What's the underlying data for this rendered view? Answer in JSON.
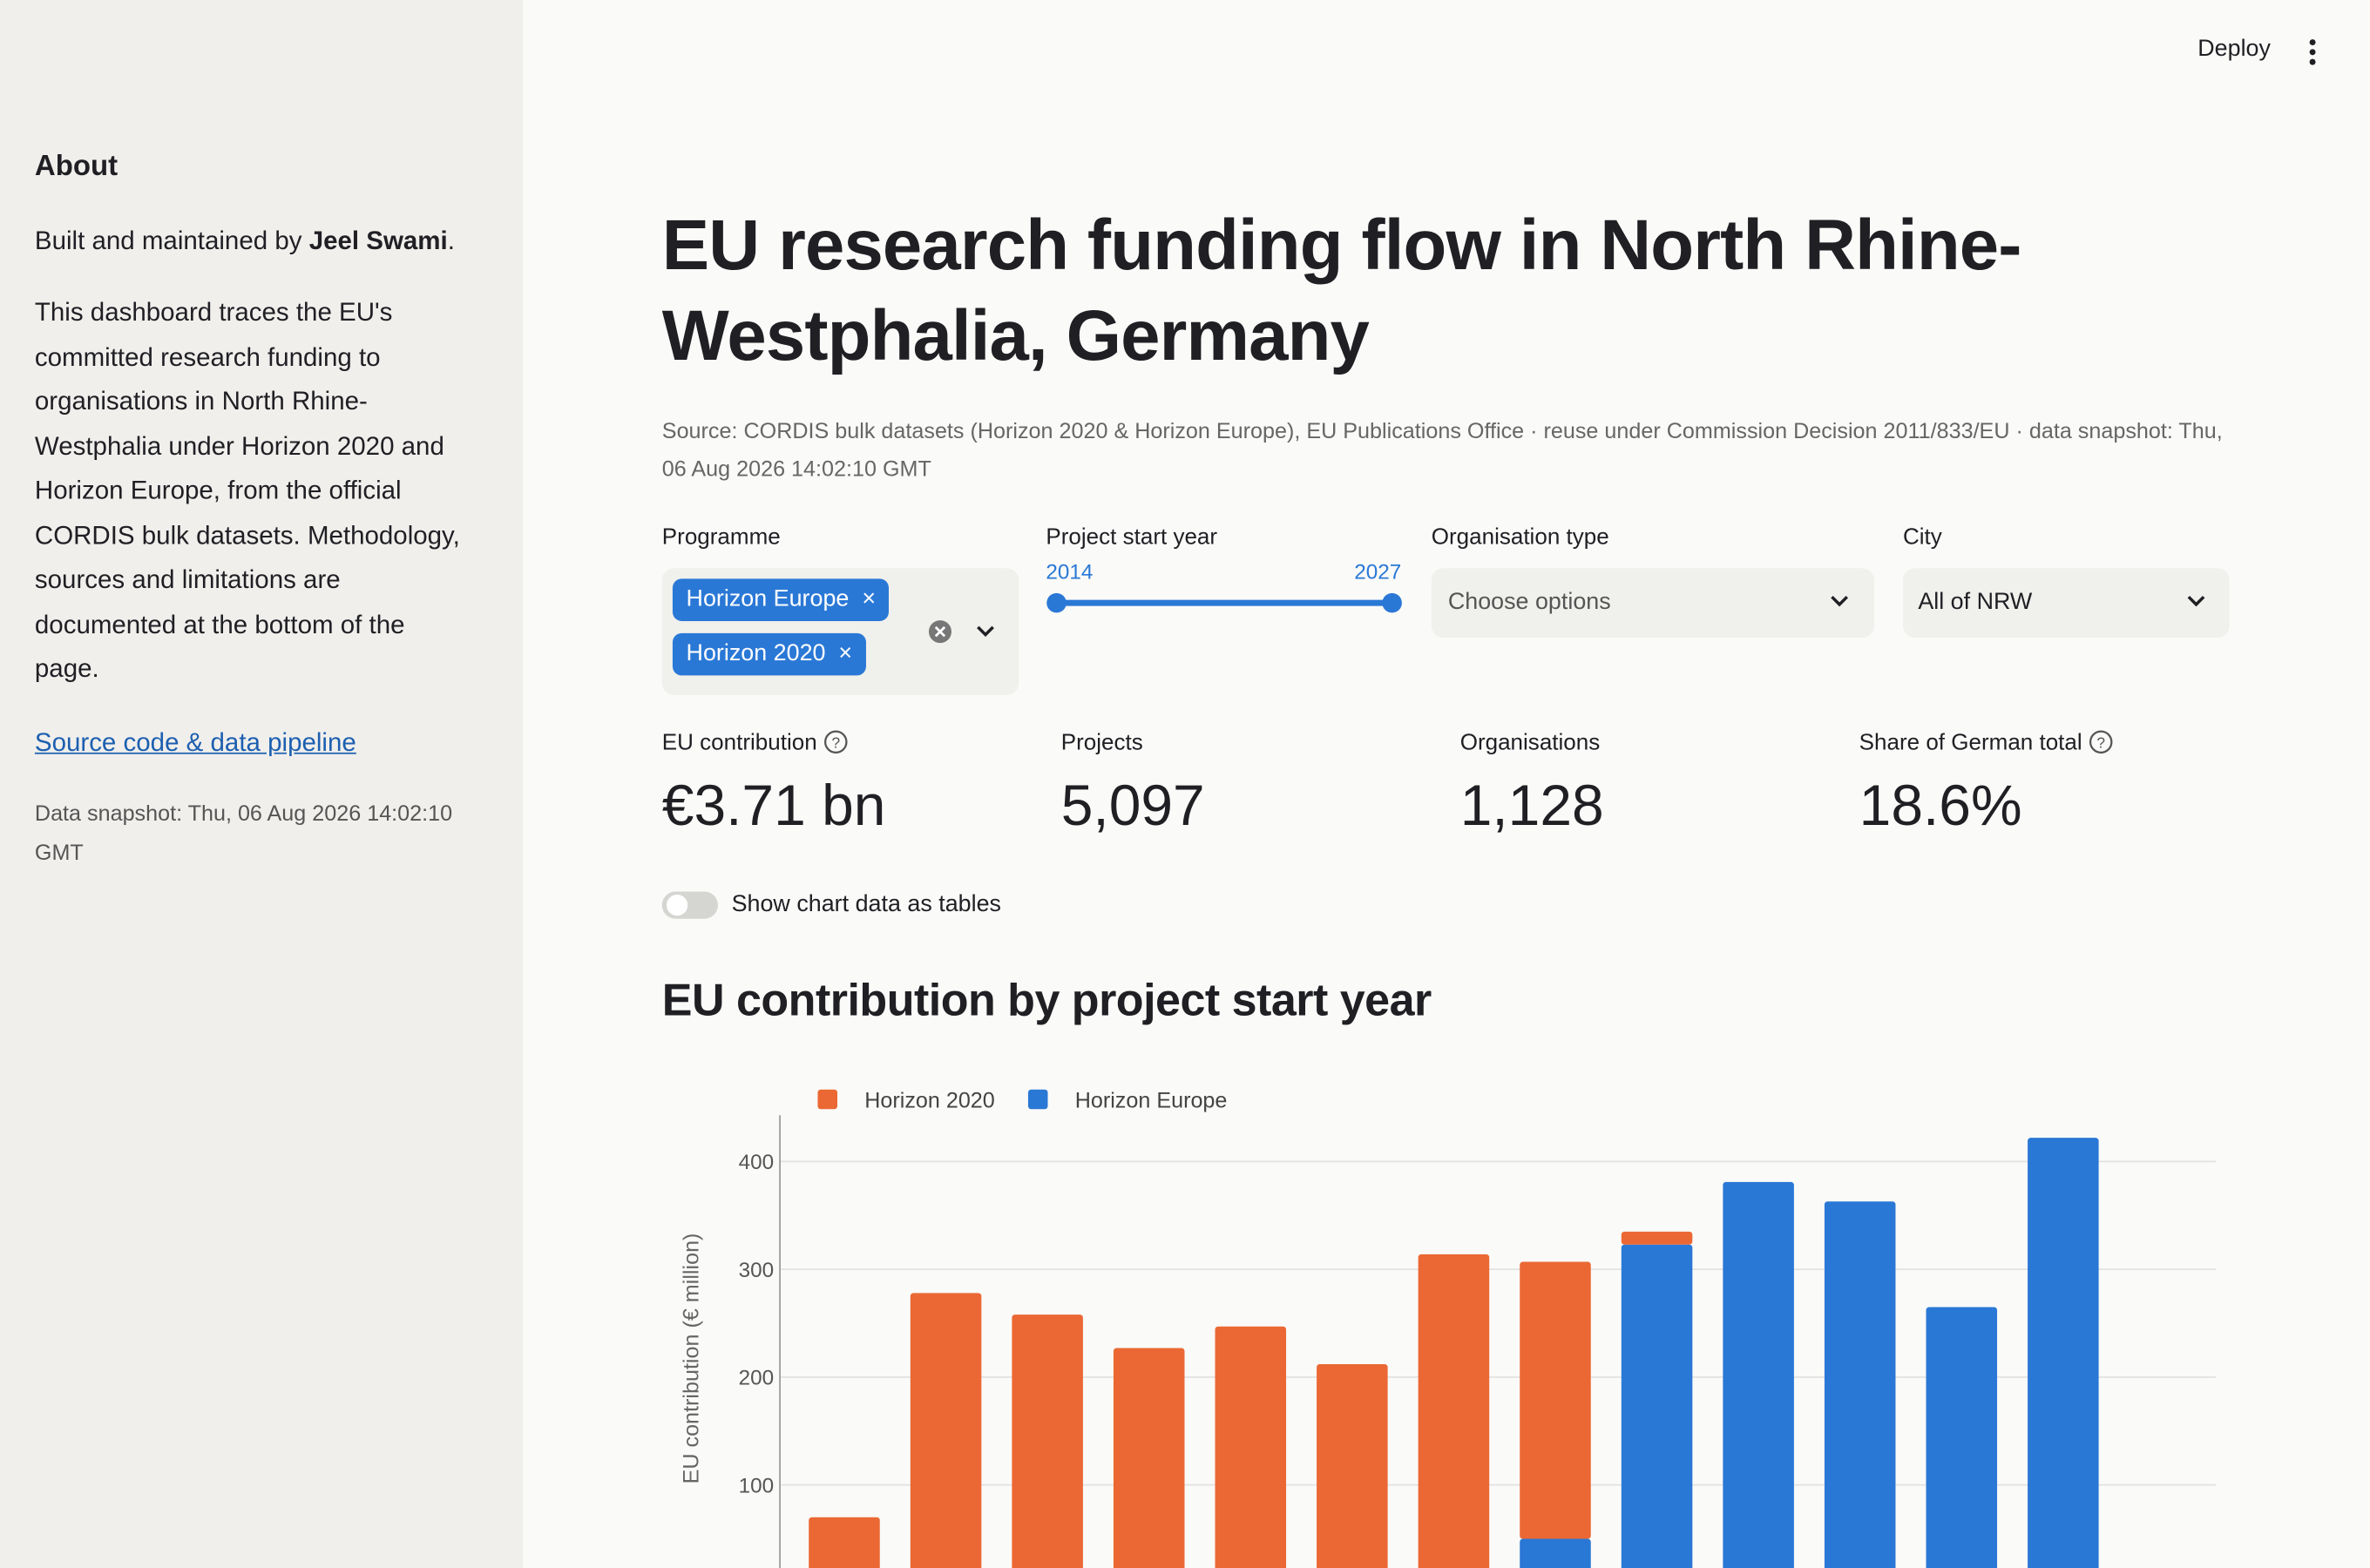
{
  "header": {
    "deploy": "Deploy"
  },
  "sidebar": {
    "heading": "About",
    "built_prefix": "Built and maintained by",
    "author": "Jeel Swami",
    "built_suffix": ".",
    "description": "This dashboard traces the EU's committed research funding to organisations in North Rhine-Westphalia under Horizon 2020 and Horizon Europe, from the official CORDIS bulk datasets. Methodology, sources and limitations are documented at the bottom of the page.",
    "link": "Source code & data pipeline",
    "snapshot": "Data snapshot: Thu, 06 Aug 2026 14:02:10 GMT"
  },
  "title": "EU research funding flow in North Rhine-Westphalia, Germany",
  "source": "Source: CORDIS bulk datasets (Horizon 2020 & Horizon Europe), EU Publications Office · reuse under Commission Decision 2011/833/EU · data snapshot: Thu, 06 Aug 2026 14:02:10 GMT",
  "filters": {
    "programme": {
      "label": "Programme",
      "selected": [
        "Horizon Europe",
        "Horizon 2020"
      ]
    },
    "year": {
      "label": "Project start year",
      "min": 2014,
      "max": 2027
    },
    "organisation_type": {
      "label": "Organisation type",
      "placeholder": "Choose options"
    },
    "city": {
      "label": "City",
      "value": "All of NRW"
    }
  },
  "metrics": [
    {
      "label": "EU contribution",
      "value": "€3.71 bn"
    },
    {
      "label": "Projects",
      "value": "5,097"
    },
    {
      "label": "Organisations",
      "value": "1,128"
    },
    {
      "label": "Share of German total",
      "value": "18.6%"
    }
  ],
  "toggle": "Show chart data as tables",
  "chart_data": {
    "type": "bar",
    "stacked": true,
    "title": "EU contribution by project start year",
    "y_label": "EU contribution (€ million)",
    "categories": [
      null,
      null,
      null,
      null,
      null,
      null,
      null,
      null,
      null,
      null,
      null,
      null,
      null
    ],
    "series": [
      {
        "name": "Horizon 2020",
        "color": "#eb6834",
        "values": [
          70,
          278,
          258,
          227,
          247,
          212,
          314,
          257,
          12,
          null,
          null,
          null,
          null
        ]
      },
      {
        "name": "Horizon Europe",
        "color": "#2a78d6",
        "values": [
          null,
          null,
          null,
          null,
          null,
          null,
          null,
          50,
          323,
          381,
          363,
          265,
          422
        ]
      }
    ],
    "stack_order": [
      1,
      0
    ],
    "ylim": [
      0,
      443
    ],
    "yticks": [
      100,
      200,
      300,
      400
    ],
    "grid": true,
    "legend": "top-left"
  }
}
